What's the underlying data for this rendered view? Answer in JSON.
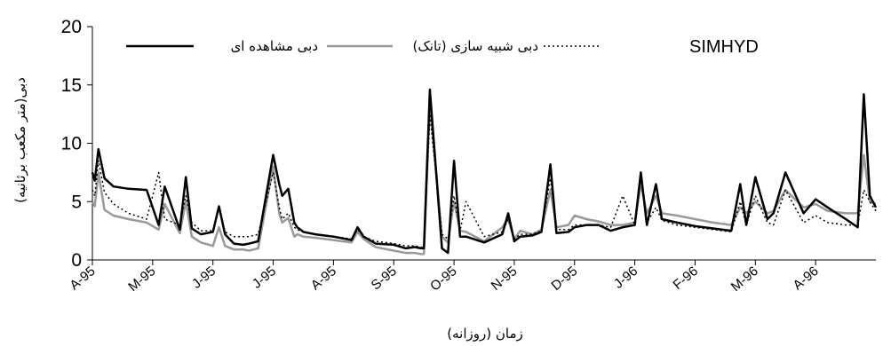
{
  "chart_data": {
    "type": "line",
    "title": "",
    "xlabel": "زمان (روزانه)",
    "ylabel": "دبی(متر مکعب برثانیه)",
    "ylim": [
      0,
      20
    ],
    "yticks": [
      "0",
      "5",
      "10",
      "15",
      "20"
    ],
    "xlim": [
      0,
      13
    ],
    "categories": [
      "A-95",
      "M-95",
      "J-95",
      "J-95",
      "A-95",
      "S-95",
      "O-95",
      "N-95",
      "D-95",
      "J-96",
      "F-96",
      "M-96",
      "A-96"
    ],
    "legend_position": "top",
    "series": [
      {
        "name": "دبی مشاهده ای",
        "color": "#000000",
        "style": "solid",
        "x": [
          0,
          0.04,
          0.1,
          0.2,
          0.35,
          0.6,
          0.9,
          1.1,
          1.2,
          1.45,
          1.55,
          1.65,
          1.8,
          2.0,
          2.1,
          2.2,
          2.35,
          2.5,
          2.6,
          2.75,
          3.0,
          3.1,
          3.15,
          3.25,
          3.35,
          3.4,
          3.5,
          3.7,
          4.0,
          4.3,
          4.4,
          4.5,
          4.7,
          5.0,
          5.2,
          5.35,
          5.45,
          5.5,
          5.6,
          5.8,
          5.9,
          6.0,
          6.1,
          6.2,
          6.5,
          6.8,
          6.9,
          7.0,
          7.1,
          7.3,
          7.45,
          7.6,
          7.7,
          7.9,
          8.0,
          8.2,
          8.4,
          8.6,
          8.8,
          9.0,
          9.1,
          9.2,
          9.35,
          9.45,
          9.7,
          10.0,
          10.3,
          10.6,
          10.75,
          10.85,
          11.0,
          11.2,
          11.3,
          11.5,
          11.8,
          12.0,
          12.2,
          12.5,
          12.7,
          12.8,
          12.9,
          13.0
        ],
        "values": [
          7.5,
          6.8,
          9.5,
          7.0,
          6.3,
          6.1,
          6.0,
          3.0,
          6.3,
          2.6,
          7.1,
          2.7,
          2.2,
          2.4,
          4.6,
          2.2,
          1.4,
          1.3,
          1.4,
          1.6,
          9.0,
          6.5,
          5.5,
          6.1,
          3.2,
          2.8,
          2.4,
          2.2,
          2.0,
          1.7,
          2.8,
          2.0,
          1.4,
          1.3,
          1.0,
          1.1,
          1.0,
          1.0,
          14.6,
          1.0,
          0.6,
          8.5,
          2.0,
          2.0,
          1.5,
          2.2,
          4.0,
          1.6,
          2.0,
          2.1,
          2.4,
          8.2,
          2.3,
          2.4,
          2.8,
          3.0,
          3.0,
          2.5,
          2.8,
          3.0,
          7.5,
          3.0,
          6.5,
          3.5,
          3.2,
          2.9,
          2.7,
          2.5,
          6.5,
          3.0,
          7.1,
          3.5,
          4.0,
          7.5,
          4.0,
          5.2,
          4.5,
          3.5,
          2.8,
          14.2,
          5.5,
          4.5
        ]
      },
      {
        "name": "دبی شبیه سازی (تانک)",
        "color": "#999999",
        "style": "solid",
        "x": [
          0,
          0.04,
          0.1,
          0.2,
          0.35,
          0.6,
          0.9,
          1.1,
          1.2,
          1.45,
          1.55,
          1.65,
          1.8,
          2.0,
          2.1,
          2.2,
          2.35,
          2.5,
          2.6,
          2.75,
          3.0,
          3.1,
          3.15,
          3.25,
          3.35,
          3.4,
          3.5,
          3.7,
          4.0,
          4.3,
          4.4,
          4.5,
          4.7,
          5.0,
          5.2,
          5.35,
          5.45,
          5.5,
          5.6,
          5.8,
          5.9,
          6.0,
          6.1,
          6.2,
          6.5,
          6.8,
          6.9,
          7.0,
          7.1,
          7.3,
          7.45,
          7.6,
          7.7,
          7.9,
          8.0,
          8.2,
          8.4,
          8.6,
          8.8,
          9.0,
          9.1,
          9.2,
          9.35,
          9.45,
          9.7,
          10.0,
          10.3,
          10.6,
          10.75,
          10.85,
          11.0,
          11.2,
          11.3,
          11.5,
          11.8,
          12.0,
          12.2,
          12.5,
          12.7,
          12.8,
          12.9,
          13.0
        ],
        "values": [
          5.0,
          4.6,
          7.5,
          4.3,
          3.8,
          3.5,
          3.2,
          2.6,
          4.8,
          2.3,
          5.0,
          2.0,
          1.5,
          1.2,
          2.8,
          1.2,
          0.9,
          0.9,
          0.8,
          1.0,
          8.0,
          4.0,
          3.2,
          3.6,
          2.0,
          2.2,
          2.0,
          1.9,
          1.7,
          1.5,
          2.4,
          1.8,
          1.1,
          0.8,
          0.6,
          0.6,
          0.5,
          0.5,
          13.5,
          2.0,
          1.5,
          5.0,
          2.5,
          2.4,
          1.6,
          2.8,
          3.5,
          1.8,
          2.5,
          2.2,
          2.6,
          6.0,
          2.8,
          3.0,
          3.8,
          3.5,
          3.3,
          3.0,
          3.0,
          3.2,
          6.5,
          4.0,
          5.5,
          4.0,
          3.8,
          3.5,
          3.2,
          3.0,
          4.5,
          4.0,
          5.0,
          4.0,
          4.2,
          6.0,
          4.5,
          4.8,
          4.2,
          4.0,
          4.0,
          9.0,
          5.0,
          4.8
        ]
      },
      {
        "name": "SIMHYD",
        "color": "#000000",
        "style": "dotted",
        "x": [
          0,
          0.04,
          0.1,
          0.2,
          0.35,
          0.6,
          0.9,
          1.1,
          1.2,
          1.45,
          1.55,
          1.65,
          1.8,
          2.0,
          2.1,
          2.2,
          2.35,
          2.5,
          2.6,
          2.75,
          3.0,
          3.1,
          3.15,
          3.25,
          3.35,
          3.4,
          3.5,
          3.7,
          4.0,
          4.3,
          4.4,
          4.5,
          4.7,
          5.0,
          5.2,
          5.35,
          5.45,
          5.5,
          5.6,
          5.8,
          5.9,
          6.0,
          6.1,
          6.2,
          6.5,
          6.8,
          6.9,
          7.0,
          7.1,
          7.3,
          7.45,
          7.6,
          7.7,
          7.9,
          8.0,
          8.2,
          8.4,
          8.6,
          8.8,
          9.0,
          9.1,
          9.2,
          9.35,
          9.45,
          9.7,
          10.0,
          10.3,
          10.6,
          10.75,
          10.85,
          11.0,
          11.2,
          11.3,
          11.5,
          11.8,
          12.0,
          12.2,
          12.5,
          12.7,
          12.8,
          12.9,
          13.0
        ],
        "values": [
          6.0,
          5.5,
          8.5,
          5.8,
          4.8,
          4.0,
          3.5,
          7.5,
          3.5,
          3.0,
          5.5,
          3.2,
          2.5,
          2.5,
          4.5,
          2.4,
          2.0,
          2.0,
          2.0,
          2.2,
          7.5,
          4.5,
          3.5,
          4.0,
          2.8,
          2.6,
          2.4,
          2.2,
          2.0,
          1.8,
          2.6,
          2.0,
          1.6,
          1.4,
          1.2,
          1.2,
          1.1,
          1.1,
          12.5,
          2.2,
          1.8,
          5.5,
          2.5,
          5.0,
          2.0,
          2.4,
          3.5,
          1.8,
          2.2,
          2.2,
          2.5,
          7.0,
          2.6,
          2.6,
          3.0,
          3.0,
          3.0,
          2.8,
          5.5,
          3.0,
          7.0,
          3.2,
          4.5,
          3.4,
          3.0,
          2.8,
          2.6,
          2.4,
          5.0,
          3.0,
          5.5,
          3.2,
          3.0,
          6.0,
          3.2,
          3.8,
          3.2,
          3.0,
          3.0,
          6.0,
          5.0,
          4.2
        ]
      }
    ]
  }
}
